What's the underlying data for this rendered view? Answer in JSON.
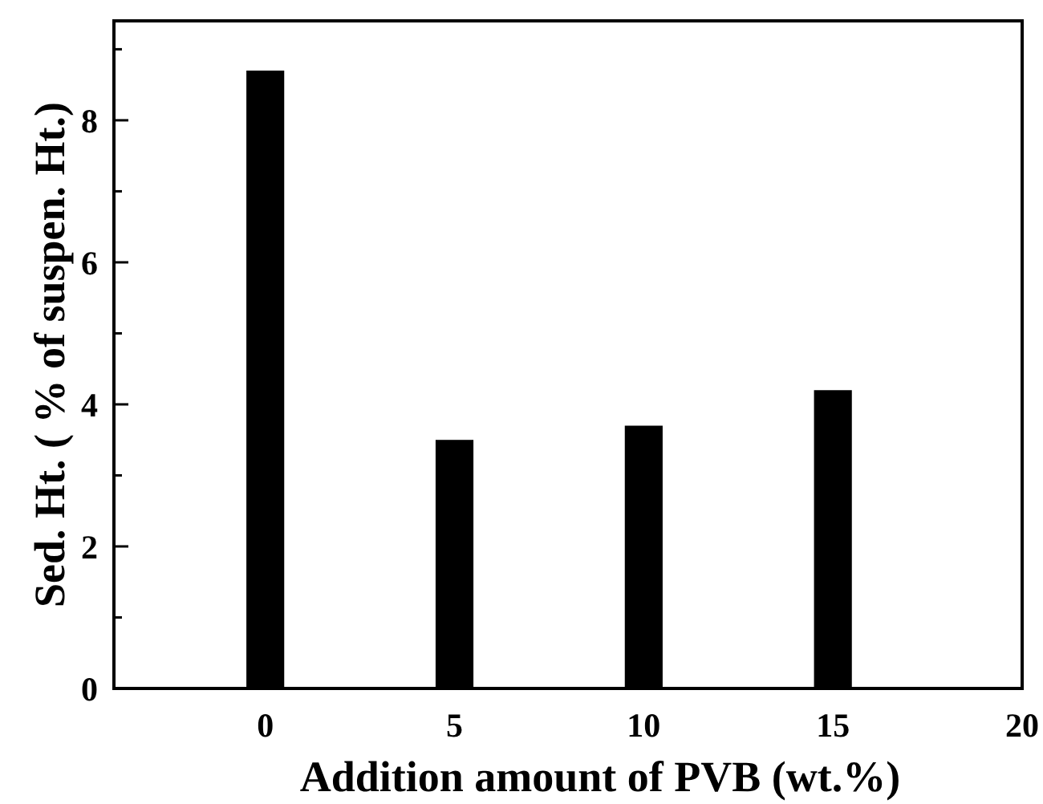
{
  "chart_data": {
    "type": "bar",
    "xlabel": "Addition amount of PVB (wt.%)",
    "ylabel": "Sed. Ht. ( % of suspen. Ht.)",
    "x": [
      0,
      5,
      10,
      15
    ],
    "series": [
      {
        "color": "#000000",
        "values": [
          8.7,
          3.5,
          3.7,
          4.2
        ]
      }
    ],
    "xlim": [
      -4,
      20
    ],
    "xticks": [
      0,
      5,
      10,
      15,
      20
    ],
    "ylim": [
      0,
      9.4
    ],
    "yticks": [
      0,
      {
        "value": 1,
        "label": null
      },
      2,
      {
        "value": 3,
        "label": null
      },
      4,
      {
        "value": 5,
        "label": null
      },
      6,
      {
        "value": 7,
        "label": null
      },
      8,
      {
        "value": 9,
        "label": null
      }
    ],
    "grid": false
  }
}
